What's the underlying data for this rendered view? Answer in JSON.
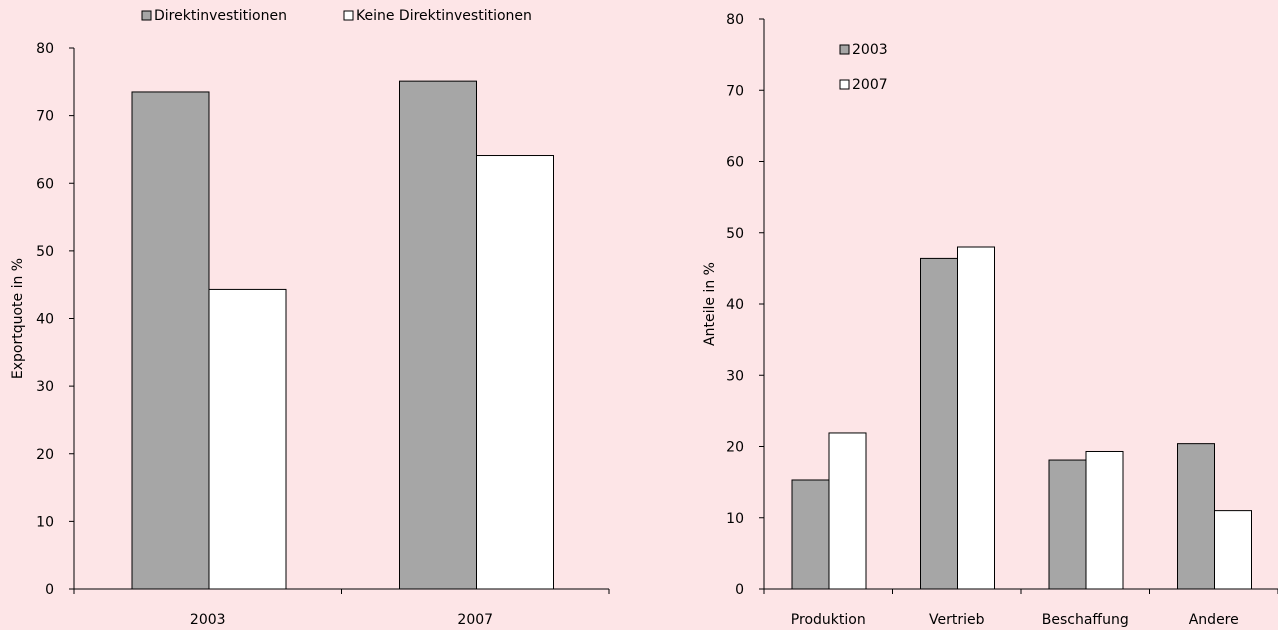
{
  "colors": {
    "background": "#fde5e7",
    "series_fill_1": "#a6a6a6",
    "series_fill_2": "#ffffff",
    "axis": "#000000"
  },
  "chart_data": [
    {
      "type": "bar",
      "title": "",
      "xlabel": "",
      "ylabel": "Exportquote in %",
      "ylim": [
        0,
        80
      ],
      "yticks": [
        0,
        10,
        20,
        30,
        40,
        50,
        60,
        70,
        80
      ],
      "categories": [
        "2003",
        "2007"
      ],
      "series": [
        {
          "name": "Direktinvestitionen",
          "values": [
            73.5,
            75.1
          ]
        },
        {
          "name": "Keine Direktinvestitionen",
          "values": [
            44.3,
            64.1
          ]
        }
      ],
      "legend": "top",
      "grid": false
    },
    {
      "type": "bar",
      "title": "",
      "xlabel": "",
      "ylabel": "Anteile in %",
      "ylim": [
        0,
        80
      ],
      "yticks": [
        0,
        10,
        20,
        30,
        40,
        50,
        60,
        70,
        80
      ],
      "categories": [
        "Produktion",
        "Vertrieb",
        "Beschaffung",
        "Andere"
      ],
      "series": [
        {
          "name": "2003",
          "values": [
            15.3,
            46.4,
            18.1,
            20.4
          ]
        },
        {
          "name": "2007",
          "values": [
            21.9,
            48.0,
            19.3,
            11.0
          ]
        }
      ],
      "legend": "top-left",
      "grid": false
    }
  ]
}
